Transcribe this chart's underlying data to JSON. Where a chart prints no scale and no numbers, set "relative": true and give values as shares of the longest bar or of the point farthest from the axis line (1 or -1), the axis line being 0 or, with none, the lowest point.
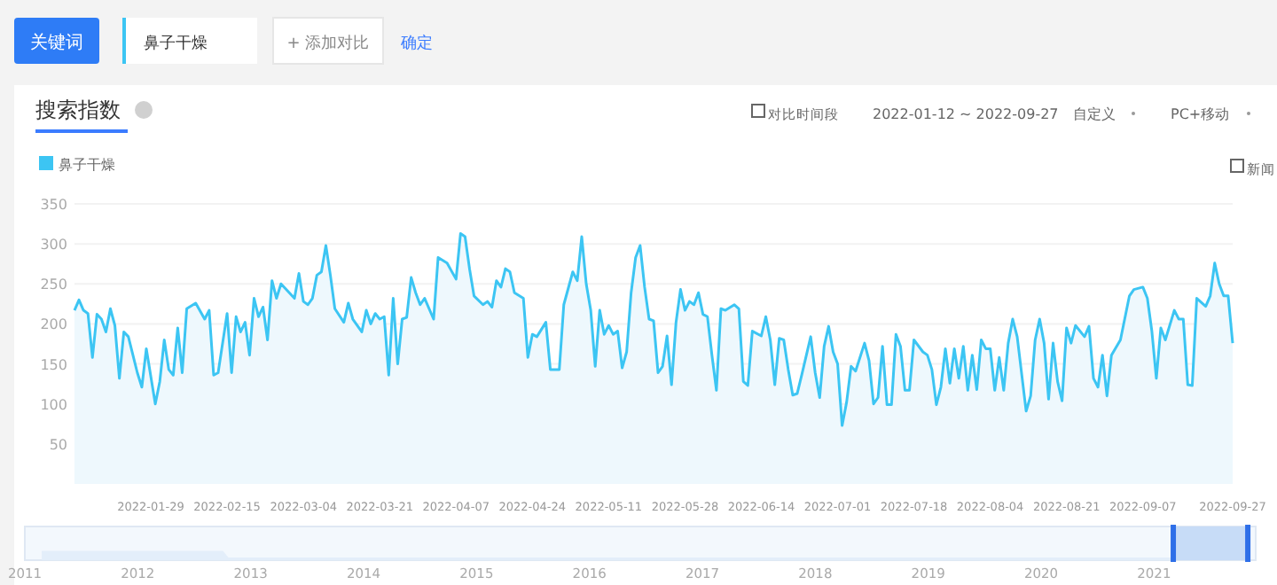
{
  "chart_data": [
    {
      "type": "area",
      "title": "搜索指数",
      "legend": "top left",
      "grid": "y",
      "annotations": [
        "关键词",
        "鼻子干燥",
        "+ 添加对比",
        "确定",
        "对比时间段",
        "2022-01-12 ~ 2022-09-27",
        "自定义",
        "PC+移动",
        "新闻"
      ],
      "xlim": [
        "2022-01-12",
        "2022-09-27"
      ],
      "xticks": [
        "2022-01-29",
        "2022-02-15",
        "2022-03-04",
        "2022-03-21",
        "2022-04-07",
        "2022-04-24",
        "2022-05-11",
        "2022-05-28",
        "2022-06-14",
        "2022-07-01",
        "2022-07-18",
        "2022-08-04",
        "2022-08-21",
        "2022-09-07",
        "2022-09-27"
      ],
      "ylim": [
        0,
        350
      ],
      "yticks": [
        50,
        100,
        150,
        200,
        250,
        300,
        350
      ],
      "series": [
        {
          "name": "鼻子干燥",
          "color": "#3cc5f3",
          "x": [
            "2022-01-12",
            "2022-01-13",
            "2022-01-14",
            "2022-01-15",
            "2022-01-16",
            "2022-01-17",
            "2022-01-18",
            "2022-01-19",
            "2022-01-20",
            "2022-01-21",
            "2022-01-22",
            "2022-01-23",
            "2022-01-24",
            "2022-01-26",
            "2022-01-27",
            "2022-01-28",
            "2022-01-30",
            "2022-01-31",
            "2022-02-01",
            "2022-02-02",
            "2022-02-03",
            "2022-02-04",
            "2022-02-05",
            "2022-02-06",
            "2022-02-08",
            "2022-02-10",
            "2022-02-11",
            "2022-02-12",
            "2022-02-13",
            "2022-02-15",
            "2022-02-16",
            "2022-02-17",
            "2022-02-18",
            "2022-02-19",
            "2022-02-20",
            "2022-02-21",
            "2022-02-22",
            "2022-02-23",
            "2022-02-24",
            "2022-02-25",
            "2022-02-26",
            "2022-02-27",
            "2022-03-02",
            "2022-03-03",
            "2022-03-04",
            "2022-03-05",
            "2022-03-06",
            "2022-03-07",
            "2022-03-08",
            "2022-03-09",
            "2022-03-10",
            "2022-03-11",
            "2022-03-13",
            "2022-03-14",
            "2022-03-15",
            "2022-03-17",
            "2022-03-18",
            "2022-03-19",
            "2022-03-20",
            "2022-03-21",
            "2022-03-22",
            "2022-03-23",
            "2022-03-24",
            "2022-03-25",
            "2022-03-26",
            "2022-03-27",
            "2022-03-28",
            "2022-03-29",
            "2022-03-30",
            "2022-03-31",
            "2022-04-02",
            "2022-04-03",
            "2022-04-05",
            "2022-04-07",
            "2022-04-08",
            "2022-04-09",
            "2022-04-10",
            "2022-04-11",
            "2022-04-13",
            "2022-04-14",
            "2022-04-15",
            "2022-04-16",
            "2022-04-17",
            "2022-04-18",
            "2022-04-19",
            "2022-04-20",
            "2022-04-22",
            "2022-04-23",
            "2022-04-24",
            "2022-04-25",
            "2022-04-27",
            "2022-04-28",
            "2022-04-30",
            "2022-05-01",
            "2022-05-03",
            "2022-05-04",
            "2022-05-05",
            "2022-05-06",
            "2022-05-07",
            "2022-05-08",
            "2022-05-09",
            "2022-05-10",
            "2022-05-11",
            "2022-05-12",
            "2022-05-13",
            "2022-05-14",
            "2022-05-15",
            "2022-05-16",
            "2022-05-17",
            "2022-05-18",
            "2022-05-19",
            "2022-05-20",
            "2022-05-21",
            "2022-05-22",
            "2022-05-23",
            "2022-05-24",
            "2022-05-25",
            "2022-05-26",
            "2022-05-27",
            "2022-05-28",
            "2022-05-29",
            "2022-05-30",
            "2022-05-31",
            "2022-06-01",
            "2022-06-02",
            "2022-06-03",
            "2022-06-04",
            "2022-06-05",
            "2022-06-06",
            "2022-06-08",
            "2022-06-09",
            "2022-06-10",
            "2022-06-11",
            "2022-06-12",
            "2022-06-14",
            "2022-06-15",
            "2022-06-16",
            "2022-06-17",
            "2022-06-18",
            "2022-06-19",
            "2022-06-20",
            "2022-06-21",
            "2022-06-22",
            "2022-06-23",
            "2022-06-25",
            "2022-06-26",
            "2022-06-27",
            "2022-06-28",
            "2022-06-29",
            "2022-06-30",
            "2022-07-01",
            "2022-07-02",
            "2022-07-03",
            "2022-07-04",
            "2022-07-05",
            "2022-07-07",
            "2022-07-08",
            "2022-07-09",
            "2022-07-10",
            "2022-07-11",
            "2022-07-12",
            "2022-07-13",
            "2022-07-14",
            "2022-07-15",
            "2022-07-16",
            "2022-07-17",
            "2022-07-18",
            "2022-07-20",
            "2022-07-21",
            "2022-07-22",
            "2022-07-23",
            "2022-07-24",
            "2022-07-25",
            "2022-07-26",
            "2022-07-27",
            "2022-07-28",
            "2022-07-29",
            "2022-07-30",
            "2022-07-31",
            "2022-08-01",
            "2022-08-02",
            "2022-08-03",
            "2022-08-04",
            "2022-08-05",
            "2022-08-06",
            "2022-08-07",
            "2022-08-08",
            "2022-08-09",
            "2022-08-10",
            "2022-08-12",
            "2022-08-13",
            "2022-08-14",
            "2022-08-15",
            "2022-08-16",
            "2022-08-17",
            "2022-08-18",
            "2022-08-19",
            "2022-08-20",
            "2022-08-21",
            "2022-08-22",
            "2022-08-23",
            "2022-08-25",
            "2022-08-26",
            "2022-08-27",
            "2022-08-28",
            "2022-08-29",
            "2022-08-30",
            "2022-08-31",
            "2022-09-02",
            "2022-09-04",
            "2022-09-05",
            "2022-09-07",
            "2022-09-08",
            "2022-09-09",
            "2022-09-10",
            "2022-09-11",
            "2022-09-12",
            "2022-09-14",
            "2022-09-15",
            "2022-09-16",
            "2022-09-17",
            "2022-09-18",
            "2022-09-19",
            "2022-09-21",
            "2022-09-22",
            "2022-09-23",
            "2022-09-24",
            "2022-09-25",
            "2022-09-26",
            "2022-09-27"
          ],
          "values": [
            217,
            230,
            217,
            213,
            158,
            212,
            206,
            190,
            219,
            198,
            132,
            190,
            184,
            139,
            121,
            169,
            100,
            128,
            180,
            143,
            136,
            195,
            139,
            219,
            226,
            206,
            217,
            136,
            139,
            213,
            139,
            209,
            190,
            202,
            161,
            232,
            209,
            221,
            180,
            254,
            232,
            250,
            232,
            263,
            228,
            224,
            232,
            261,
            265,
            298,
            261,
            219,
            202,
            226,
            206,
            190,
            217,
            200,
            213,
            206,
            209,
            136,
            232,
            150,
            206,
            208,
            258,
            239,
            224,
            232,
            206,
            283,
            276,
            256,
            313,
            309,
            269,
            235,
            224,
            228,
            221,
            254,
            246,
            269,
            265,
            239,
            232,
            158,
            187,
            184,
            202,
            143,
            143,
            224,
            265,
            254,
            309,
            250,
            217,
            147,
            217,
            187,
            198,
            187,
            191,
            145,
            165,
            239,
            283,
            298,
            246,
            206,
            204,
            139,
            147,
            185,
            124,
            202,
            243,
            217,
            228,
            224,
            239,
            212,
            209,
            161,
            117,
            219,
            217,
            224,
            219,
            128,
            123,
            191,
            185,
            209,
            180,
            124,
            182,
            180,
            143,
            111,
            113,
            136,
            184,
            139,
            108,
            172,
            197,
            165,
            150,
            73,
            102,
            147,
            141,
            176,
            154,
            100,
            108,
            172,
            99,
            99,
            187,
            172,
            117,
            117,
            180,
            165,
            161,
            143,
            99,
            121,
            169,
            126,
            169,
            132,
            172,
            117,
            161,
            118,
            180,
            169,
            169,
            117,
            158,
            117,
            176,
            206,
            184,
            91,
            110,
            180,
            206,
            176,
            106,
            176,
            128,
            104,
            195,
            176,
            198,
            184,
            197,
            132,
            121,
            161,
            110,
            161,
            180,
            235,
            243,
            246,
            232,
            191,
            132,
            195,
            180,
            217,
            206,
            206,
            124,
            123,
            232,
            222,
            235,
            276,
            250,
            235,
            235,
            176
          ]
        }
      ]
    },
    {
      "type": "area",
      "relative": true,
      "x": [
        2011.15,
        2012.75,
        2012.8,
        2021.85
      ],
      "values": [
        1,
        1,
        0.2,
        0.2
      ],
      "color": "#e3eefa",
      "xlim": [
        2011,
        2021.9
      ],
      "xticks": [
        2011,
        2012,
        2013,
        2014,
        2015,
        2016,
        2017,
        2018,
        2019,
        2020,
        2021
      ],
      "bands": [
        {
          "axis": "x",
          "from": 2021.17,
          "to": 2021.83,
          "color": "#c7dcf7"
        }
      ],
      "ref_lines": [
        {
          "axis": "x",
          "value": 2021.17,
          "color": "#2e6fe8"
        },
        {
          "axis": "x",
          "value": 2021.83,
          "color": "#2e6fe8"
        }
      ]
    }
  ]
}
